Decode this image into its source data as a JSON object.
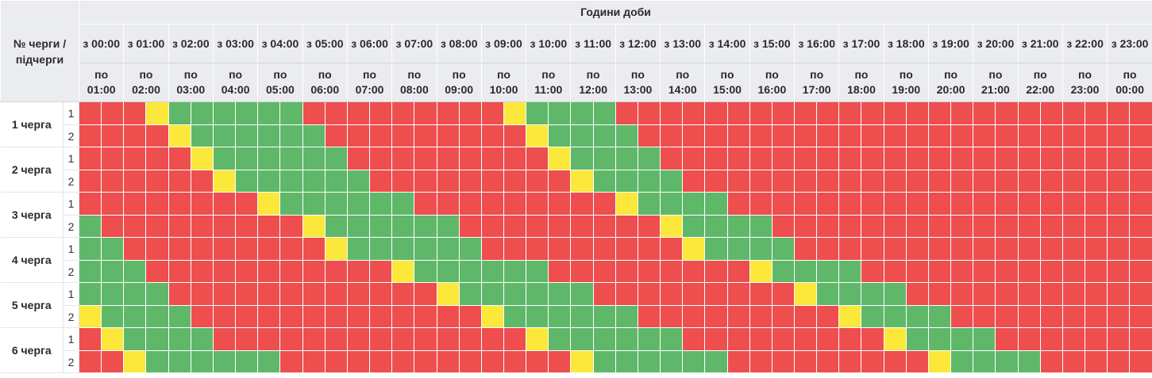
{
  "header": {
    "row_label": "№ черги / підчерги",
    "title": "Години доби"
  },
  "hours": [
    {
      "from": "з 00:00",
      "to": "по 01:00"
    },
    {
      "from": "з 01:00",
      "to": "по 02:00"
    },
    {
      "from": "з 02:00",
      "to": "по 03:00"
    },
    {
      "from": "з 03:00",
      "to": "по 04:00"
    },
    {
      "from": "з 04:00",
      "to": "по 05:00"
    },
    {
      "from": "з 05:00",
      "to": "по 06:00"
    },
    {
      "from": "з 06:00",
      "to": "по 07:00"
    },
    {
      "from": "з 07:00",
      "to": "по 08:00"
    },
    {
      "from": "з 08:00",
      "to": "по 09:00"
    },
    {
      "from": "з 09:00",
      "to": "по 10:00"
    },
    {
      "from": "з 10:00",
      "to": "по 11:00"
    },
    {
      "from": "з 11:00",
      "to": "по 12:00"
    },
    {
      "from": "з 12:00",
      "to": "по 13:00"
    },
    {
      "from": "з 13:00",
      "to": "по 14:00"
    },
    {
      "from": "з 14:00",
      "to": "по 15:00"
    },
    {
      "from": "з 15:00",
      "to": "по 16:00"
    },
    {
      "from": "з 16:00",
      "to": "по 17:00"
    },
    {
      "from": "з 17:00",
      "to": "по 18:00"
    },
    {
      "from": "з 18:00",
      "to": "по 19:00"
    },
    {
      "from": "з 19:00",
      "to": "по 20:00"
    },
    {
      "from": "з 20:00",
      "to": "по 21:00"
    },
    {
      "from": "з 21:00",
      "to": "по 22:00"
    },
    {
      "from": "з 22:00",
      "to": "по 23:00"
    },
    {
      "from": "з 23:00",
      "to": "по 00:00"
    }
  ],
  "colors": {
    "R": "#ee4e4e",
    "G": "#5fb86a",
    "Y": "#fbe83b"
  },
  "queues": [
    {
      "name": "1 черга",
      "subs": [
        {
          "label": "1",
          "halves": "RRRYGGGGGGRRRRRRRRRYGGGGRRRRRRRRRRRRRRRRRRRRRRRRRRRRRRRRRRRRRYGGGGRRRRRRRRRRRRRRRRRRRRRRRRRRRRRRRRRRRRRRRRRRYGGGGRRRRRRRRRRRRRRRRRRRRRRRRRRRRRRRRRRRRRRRRRRRRRRRRRRRYGGGGRR"
        },
        {
          "label": "2",
          "halves": "RRRRYGGGGGGRRRRRRRRRYGGGGRRRRRRRRRRRRRRRRRRRRRRRRRRRRRRRRRRRRRYGGGGRRRRRRRRRRRRRRRRRRRRRRRRRRRRRRRRRRRRRRRRRRYGGGGRRRRRRRRRRRRRRRRRRRRRRRRRRRRRRRRRRRRRRRRRRRRRRRRRRRYGGGGR"
        }
      ]
    },
    {
      "name": "2 черга",
      "subs": [
        {
          "label": "1",
          "halves": "RRRRRYGGGGGGRRRRRRRRRYGGGGRRRRRRRRRRRRRRRRRRRRRRRRRRRRRRRRRRRRRYGGGGRRRRRRRRRRRRRRRRRRRRRRRRRRRRRRRRRRRRRRRRRRYGGGGRRRRRRRRRRRRRRRRRRRRRRRRRRRRRRRRRRRRRRRRRRRRRRRRRRRYGGGG"
        },
        {
          "label": "2",
          "halves": "RRRRRRYGGGGGGRRRRRRRRRYGGGGRRRRRRRRRRRRRRRRRRRRRRRRRRRRRRRRRRRRRYGGGGRRRRRRRRRRRRRRRRRRRRRRRRRRRRRRRRRRRRRRRRRRYGGGGRRRRRRRRRRRRRRRRRRRRRRRRRRRRRRRRRRRRRRRRRRRRRRRRRRRRYGGG"
        }
      ]
    },
    {
      "name": "3 черга",
      "subs": [
        {
          "label": "1",
          "halves": "RRRRRRRRYGGGGGGRRRRRRRRRYGGGGRRRRRRRRRRRRRRRRRRRRRRRRRRRRRRRRRRRRRYGGGGRRRRRRRRRRRRRRRRRRRRRRRRRRRRRRRRRRRRRRRRRRYGGGGRRRRRRRRRRRRRRRRRRRRRRRRRRRRRRRRRRRRRRRRRRRRRRRRRRRRRRRYG"
        },
        {
          "label": "2",
          "halves": "GRRRRRRRRRYGGGGGGRRRRRRRRRYGGGGRRRRRRRRRRRRRRRRRRRRRRRRRRRRRRRRRRRRRYGGGGRRRRRRRRRRRRRRRRRRRRRRRRRRRRRRRRRRRRRRRRRRYGGGGRRRRRRRRRRRRRRRRRRRRRRRRRRRRRRRRRRRRRRRRRRRRRRRRRRRRRRRRY"
        }
      ]
    },
    {
      "name": "4 черга",
      "subs": [
        {
          "label": "1",
          "halves": "GGRRRRRRRRRYGGGGGGRRRRRRRRRYGGGGRRRRRRRRRRRRRRRRRRRRRRRRRRRRRRRRRRRRRYGGGGRRRRRRRRRRRRRRRRRRRRRRRRRRRRRRRRRRRRRRRRRRYGGGGRRRRRRRRRRRRRRRRRRRRRRRRRRRRRRRRRRRRRRRRRRRRRRRRRRRRRRR"
        },
        {
          "label": "2",
          "halves": "GGGRRRRRRRRRRRYGGGGGGRRRRRRRRRYGGGGRRRRRRRRRRRRRRRRRRRRRRRRRRRRRRRRRRRRRYGGGGRRRRRRRRRRRRRRRRRRRRRRRRRRRRRRRRRRRRRRRRRRYGGGGRRRRRRRRRRRRRRRRRRRRRRRRRRRRRRRRRRRRRRRRRRRRRRRRRRR"
        }
      ]
    },
    {
      "name": "5 черга",
      "subs": [
        {
          "label": "1",
          "halves": "GGGGRRRRRRRRRRRRYGGGGGGRRRRRRRRRYGGGGRRRRRRRRRRRRRRRRRRRRRRRRRRRRRRRRRRRRRYGGGGRRRRRRRRRRRRRRRRRRRRRRRRRRRRRRRRRRRRRRRRRRYGGGGRRRRRRRRRRRRRRRRRRRRRRRRRRRRRRRRRRRRRRRRRRRRRRRRR"
        },
        {
          "label": "2",
          "halves": "YGGGGRRRRRRRRRRRRRYGGGGGGRRRRRRRRRYGGGGRRRRRRRRRRRRRRRRRRRRRRRRRRRRRRRRRRRRRYGGGGRRRRRRRRRRRRRRRRRRRRRRRRRRRRRRRRRRRRRRRRRRYGGGGRRRRRRRRRRRRRRRRRRRRRRRRRRRRRRRRRRRRRRRRRRRRRRR"
        }
      ]
    },
    {
      "name": "6 черга",
      "subs": [
        {
          "label": "1",
          "halves": "RYGGGGRRRRRRRRRRRRRRYGGGGGGRRRRRRRRRYGGGGRRRRRRRRRRRRRRRRRRRRRRRRRRRRRRRRRRRRRYGGGGRRRRRRRRRRRRRRRRRRRRRRRRRRRRRRRRRRRRRRRRRRRYGGGGRRRRRRRRRRRRRRRRRRRRRRRRRRRRRRRRRRRRRRRRRRRRR"
        },
        {
          "label": "2",
          "halves": "RRYGGGGGGRRRRRRRRRRRRRYGGGGGGRRRRRRRRRYGGGGRRRRRRRRRRRRRRRRRRRRRRRRRRRRRRRRRRRRRYGGGGRRRRRRRRRRRRRRRRRRRRRRRRRRRRRRRRRRRRRRRRRRRRYGGGGRRRRRRRRRRRRRRRRRRRRRRRRRRRRRRRRRRRRRRR"
        }
      ]
    }
  ]
}
